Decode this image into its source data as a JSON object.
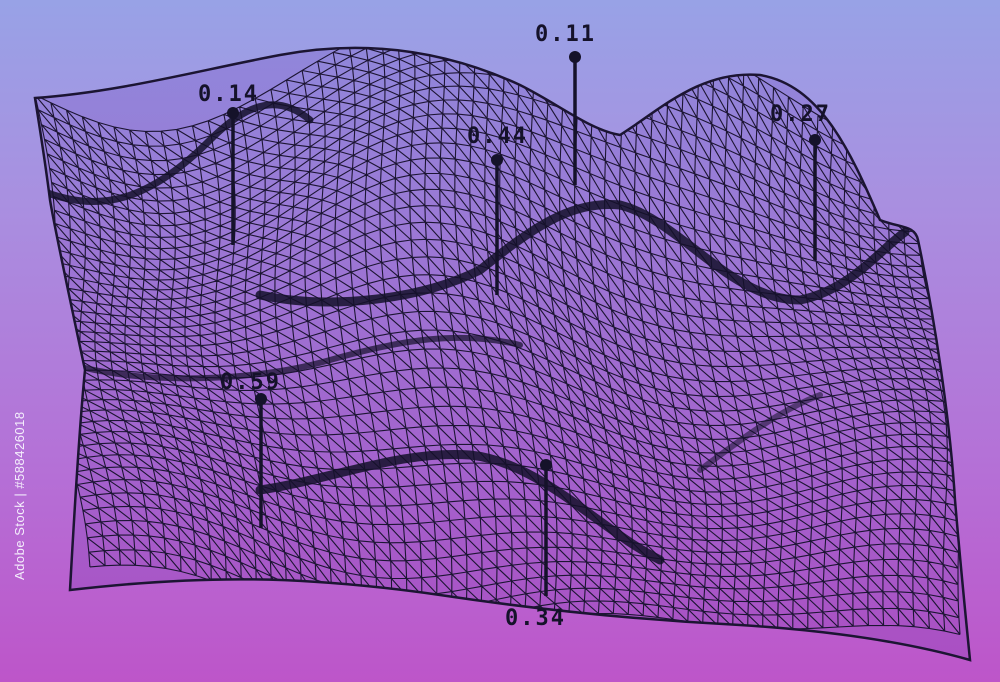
{
  "colors": {
    "background_top": "#98a2e6",
    "background_bottom": "#bd55c9",
    "mesh_line": "#1c1533",
    "pin": "#15122a"
  },
  "markers": [
    {
      "label": "0.14"
    },
    {
      "label": "0.11"
    },
    {
      "label": "0.44"
    },
    {
      "label": "0.27"
    },
    {
      "label": "0.59"
    },
    {
      "label": "0.34"
    }
  ],
  "watermark": {
    "side_id": "Adobe Stock | #588426018",
    "text": "Adobe Stock"
  }
}
